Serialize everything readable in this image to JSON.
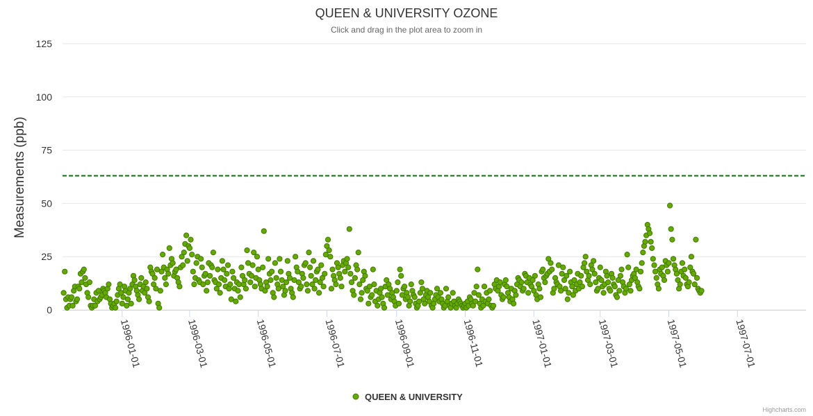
{
  "chart_data": {
    "type": "scatter",
    "title": "QUEEN & UNIVERSITY OZONE",
    "subtitle": "Click and drag in the plot area to zoom in",
    "ylabel": "Measurements (ppb)",
    "xlabel": "",
    "ylim": [
      0,
      125
    ],
    "yticks": [
      "0",
      "25",
      "50",
      "75",
      "100",
      "125"
    ],
    "xlim": [
      "1995-11-09",
      "1997-08-31"
    ],
    "xticks": [
      "1996-01-01",
      "1996-03-01",
      "1996-05-01",
      "1996-07-01",
      "1996-09-01",
      "1996-11-01",
      "1997-01-01",
      "1997-03-01",
      "1997-05-01",
      "1997-07-01"
    ],
    "threshold": 63,
    "threshold_color": "#007a00",
    "series": [
      {
        "name": "QUEEN & UNIVERSITY",
        "color": "#66aa00",
        "marker_stroke": "#3d7a00",
        "start": "1995-11-10",
        "step_days": 1,
        "values": [
          8,
          18,
          5,
          1,
          6,
          2,
          5,
          6,
          2,
          9,
          11,
          4,
          5,
          11,
          10,
          17,
          13,
          18,
          19,
          15,
          12,
          8,
          6,
          13,
          2,
          1,
          2,
          5,
          2,
          8,
          4,
          9,
          5,
          6,
          7,
          10,
          9,
          8,
          6,
          10,
          12,
          5,
          3,
          1,
          2,
          3,
          1,
          4,
          7,
          10,
          12,
          8,
          3,
          6,
          11,
          9,
          2,
          5,
          8,
          10,
          3,
          12,
          16,
          14,
          11,
          9,
          7,
          5,
          12,
          15,
          9,
          11,
          8,
          13,
          10,
          6,
          4,
          20,
          18,
          17,
          12,
          15,
          10,
          19,
          3,
          1,
          9,
          18,
          26,
          20,
          15,
          12,
          19,
          17,
          29,
          21,
          24,
          22,
          16,
          18,
          19,
          15,
          13,
          11,
          20,
          25,
          21,
          27,
          31,
          35,
          23,
          30,
          29,
          33,
          26,
          18,
          12,
          15,
          22,
          25,
          14,
          13,
          24,
          20,
          12,
          16,
          17,
          9,
          13,
          22,
          16,
          21,
          20,
          27,
          14,
          13,
          10,
          19,
          12,
          8,
          15,
          23,
          19,
          14,
          11,
          17,
          21,
          10,
          12,
          5,
          18,
          15,
          10,
          4,
          13,
          9,
          12,
          6,
          20,
          16,
          12,
          14,
          10,
          28,
          22,
          17,
          13,
          16,
          21,
          27,
          11,
          15,
          25,
          19,
          14,
          12,
          10,
          20,
          37,
          9,
          13,
          11,
          24,
          17,
          14,
          18,
          8,
          6,
          22,
          15,
          12,
          10,
          24,
          18,
          14,
          11,
          7,
          9,
          13,
          23,
          17,
          15,
          10,
          8,
          6,
          14,
          25,
          20,
          18,
          13,
          10,
          11,
          17,
          15,
          21,
          22,
          12,
          9,
          27,
          20,
          16,
          12,
          23,
          10,
          14,
          18,
          19,
          8,
          13,
          21,
          15,
          11,
          17,
          26,
          30,
          33,
          28,
          25,
          10,
          19,
          16,
          14,
          12,
          22,
          20,
          17,
          15,
          11,
          21,
          23,
          18,
          22,
          24,
          20,
          38,
          17,
          13,
          9,
          7,
          15,
          21,
          19,
          27,
          12,
          5,
          8,
          14,
          18,
          16,
          10,
          9,
          3,
          11,
          6,
          7,
          19,
          12,
          4,
          9,
          2,
          5,
          8,
          10,
          6,
          3,
          1,
          11,
          14,
          7,
          12,
          10,
          5,
          8,
          6,
          4,
          2,
          9,
          13,
          3,
          19,
          16,
          7,
          10,
          11,
          5,
          8,
          6,
          2,
          4,
          12,
          9,
          7,
          6,
          3,
          1,
          2,
          4,
          8,
          13,
          10,
          5,
          3,
          7,
          9,
          6,
          4,
          8,
          2,
          1,
          3,
          5,
          7,
          10,
          6,
          4,
          8,
          5,
          3,
          1,
          2,
          10,
          4,
          6,
          2,
          1,
          3,
          8,
          4,
          2,
          1,
          3,
          5,
          4,
          3,
          2,
          1,
          2,
          3,
          1,
          4,
          2,
          6,
          5,
          3,
          2,
          8,
          4,
          11,
          19,
          7,
          3,
          1,
          5,
          2,
          11,
          4,
          8,
          3,
          5,
          9,
          2,
          1,
          2,
          12,
          10,
          14,
          9,
          11,
          13,
          7,
          5,
          6,
          12,
          14,
          11,
          8,
          6,
          4,
          10,
          5,
          3,
          9,
          7,
          12,
          15,
          14,
          11,
          13,
          9,
          10,
          17,
          16,
          13,
          8,
          15,
          12,
          11,
          14,
          9,
          16,
          7,
          5,
          12,
          10,
          6,
          18,
          19,
          15,
          13,
          16,
          17,
          24,
          18,
          22,
          19,
          8,
          10,
          15,
          13,
          12,
          21,
          11,
          9,
          17,
          20,
          14,
          10,
          16,
          5,
          8,
          18,
          13,
          11,
          7,
          14,
          9,
          12,
          17,
          10,
          13,
          16,
          11,
          20,
          22,
          25,
          18,
          14,
          16,
          12,
          21,
          19,
          23,
          17,
          13,
          9,
          10,
          15,
          20,
          14,
          11,
          8,
          12,
          18,
          16,
          13,
          10,
          9,
          17,
          15,
          12,
          11,
          7,
          6,
          14,
          9,
          16,
          19,
          13,
          11,
          8,
          10,
          26,
          20,
          12,
          9,
          14,
          16,
          17,
          15,
          19,
          13,
          11,
          10,
          18,
          22,
          27,
          30,
          32,
          35,
          40,
          38,
          36,
          32,
          29,
          24,
          21,
          18,
          15,
          12,
          10,
          19,
          17,
          20,
          16,
          14,
          23,
          21,
          18,
          22,
          49,
          38,
          33,
          24,
          21,
          19,
          17,
          14,
          10,
          12,
          18,
          22,
          16,
          19,
          15,
          12,
          11,
          13,
          20,
          25,
          18,
          17,
          12,
          33,
          15,
          10,
          9,
          8,
          9
        ]
      }
    ],
    "legend_position": "bottom-center",
    "credits": "Highcharts.com"
  }
}
